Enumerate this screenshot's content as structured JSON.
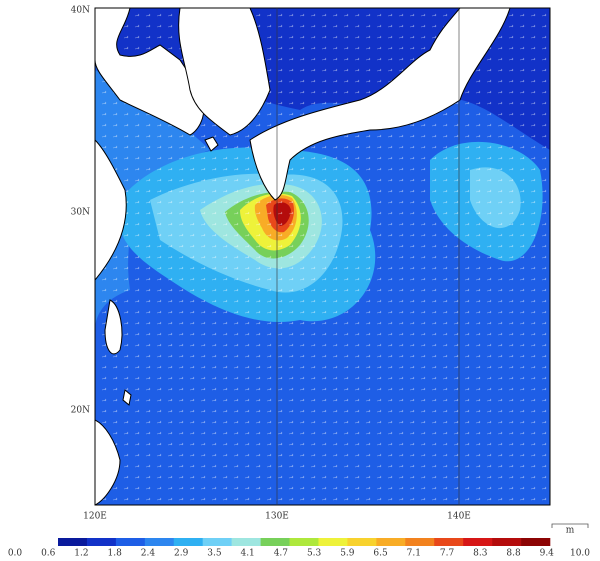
{
  "map": {
    "lat_labels": [
      "40N",
      "30N",
      "20N"
    ],
    "lon_labels": [
      "120E",
      "130E",
      "140E"
    ],
    "colorbar": {
      "unit": "m",
      "labels": [
        "0.0",
        "0.6",
        "1.2",
        "1.8",
        "2.4",
        "2.9",
        "3.5",
        "4.1",
        "4.7",
        "5.3",
        "5.9",
        "6.5",
        "7.1",
        "7.7",
        "8.3",
        "8.8",
        "9.4",
        "10.0"
      ],
      "colors": [
        "#0a1a9c",
        "#1232c8",
        "#1e5ee6",
        "#2d86ef",
        "#2fb0f2",
        "#6fd0f6",
        "#9ee6e0",
        "#77d05a",
        "#aee83c",
        "#eef23a",
        "#f8d22e",
        "#f8ac26",
        "#f2821e",
        "#e8481a",
        "#d61616",
        "#b40c0c",
        "#8c0404"
      ]
    }
  }
}
